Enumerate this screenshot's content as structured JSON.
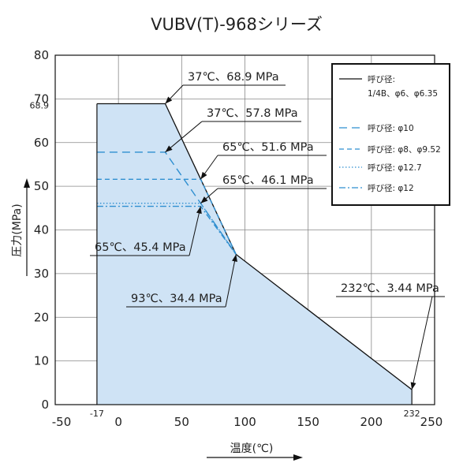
{
  "chart_data": {
    "type": "area",
    "title": "VUBV(T)-968シリーズ",
    "xlabel": "温度(℃)",
    "ylabel": "圧力(MPa)",
    "xlim": [
      -50,
      250
    ],
    "ylim": [
      0,
      80
    ],
    "xticks": [
      "-50",
      "0",
      "50",
      "100",
      "150",
      "200",
      "250"
    ],
    "xtick_values": [
      -50,
      0,
      50,
      100,
      150,
      200,
      250
    ],
    "yticks": [
      "0",
      "10",
      "20",
      "30",
      "40",
      "50",
      "60",
      "70",
      "80"
    ],
    "ytick_values": [
      0,
      10,
      20,
      30,
      40,
      50,
      60,
      70,
      80
    ],
    "extra_xticks": [
      {
        "value": -17,
        "label": "-17"
      },
      {
        "value": 232,
        "label": "232"
      }
    ],
    "extra_yticks": [
      {
        "value": 68.9,
        "label": "68.9"
      }
    ],
    "grid": true,
    "legend_position": "top-right",
    "region": {
      "x": [
        -17,
        -17,
        37,
        93,
        232,
        232
      ],
      "y": [
        0,
        68.9,
        68.9,
        34.4,
        3.44,
        0
      ],
      "color": "#cfe3f5"
    },
    "series": [
      {
        "name": "呼び径:\n1/4B、φ6、φ6.35",
        "style": "solid",
        "color": "#111111",
        "x": [
          -17,
          37,
          93,
          232
        ],
        "y": [
          68.9,
          68.9,
          34.4,
          3.44
        ]
      },
      {
        "name": "呼び径: φ10",
        "style": "dash-long",
        "color": "#2f8fd0",
        "x": [
          -17,
          37,
          93
        ],
        "y": [
          57.8,
          57.8,
          34.4
        ]
      },
      {
        "name": "呼び径: φ8、φ9.52",
        "style": "dash",
        "color": "#2f8fd0",
        "x": [
          -17,
          65,
          93
        ],
        "y": [
          51.6,
          51.6,
          34.4
        ]
      },
      {
        "name": "呼び径: φ12.7",
        "style": "dot",
        "color": "#2f8fd0",
        "x": [
          -17,
          65,
          93
        ],
        "y": [
          46.1,
          46.1,
          34.4
        ]
      },
      {
        "name": "呼び径: φ12",
        "style": "dashdot",
        "color": "#2f8fd0",
        "x": [
          -17,
          65,
          93
        ],
        "y": [
          45.4,
          45.4,
          34.4
        ]
      }
    ],
    "annotations": [
      {
        "text": "37℃、68.9 MPa",
        "x": 37,
        "y": 68.9
      },
      {
        "text": "37℃、57.8 MPa",
        "x": 37,
        "y": 57.8
      },
      {
        "text": "65℃、51.6 MPa",
        "x": 65,
        "y": 51.6
      },
      {
        "text": "65℃、46.1 MPa",
        "x": 65,
        "y": 46.1
      },
      {
        "text": "65℃、45.4 MPa",
        "x": 65,
        "y": 45.4
      },
      {
        "text": "93℃、34.4 MPa",
        "x": 93,
        "y": 34.4
      },
      {
        "text": "232℃、3.44 MPa",
        "x": 232,
        "y": 3.44
      }
    ]
  }
}
